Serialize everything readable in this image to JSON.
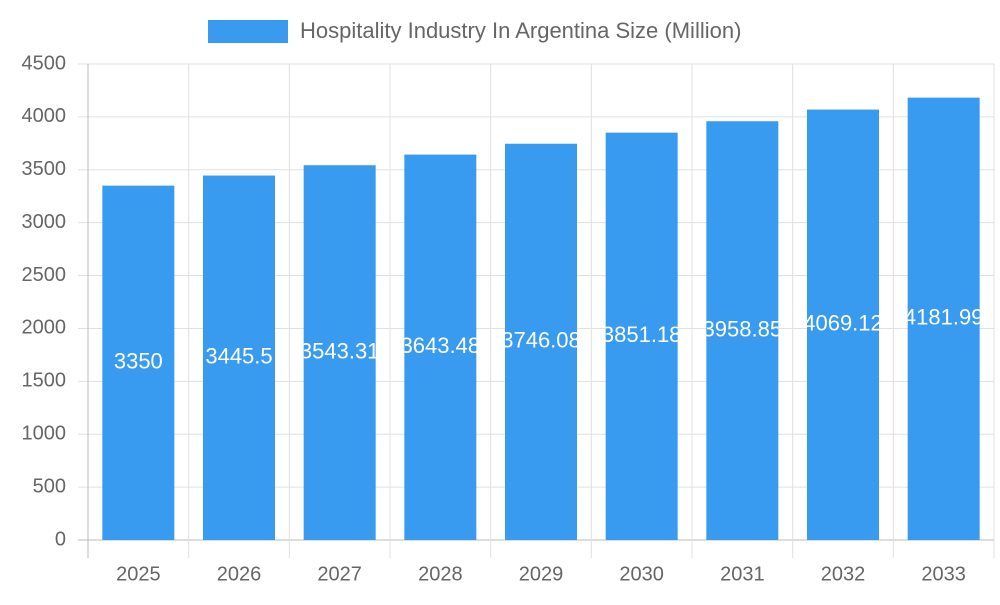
{
  "chart_data": {
    "type": "bar",
    "categories": [
      "2025",
      "2026",
      "2027",
      "2028",
      "2029",
      "2030",
      "2031",
      "2032",
      "2033"
    ],
    "series": [
      {
        "name": "Hospitality Industry In Argentina Size (Million)",
        "color": "#389bef",
        "values": [
          3350,
          3445.5,
          3543.31,
          3643.48,
          3746.08,
          3851.18,
          3958.85,
          4069.12,
          4181.99
        ]
      }
    ],
    "ylim": [
      0,
      4500
    ],
    "yticks": [
      0,
      500,
      1000,
      1500,
      2000,
      2500,
      3000,
      3500,
      4000,
      4500
    ],
    "grid": true
  }
}
